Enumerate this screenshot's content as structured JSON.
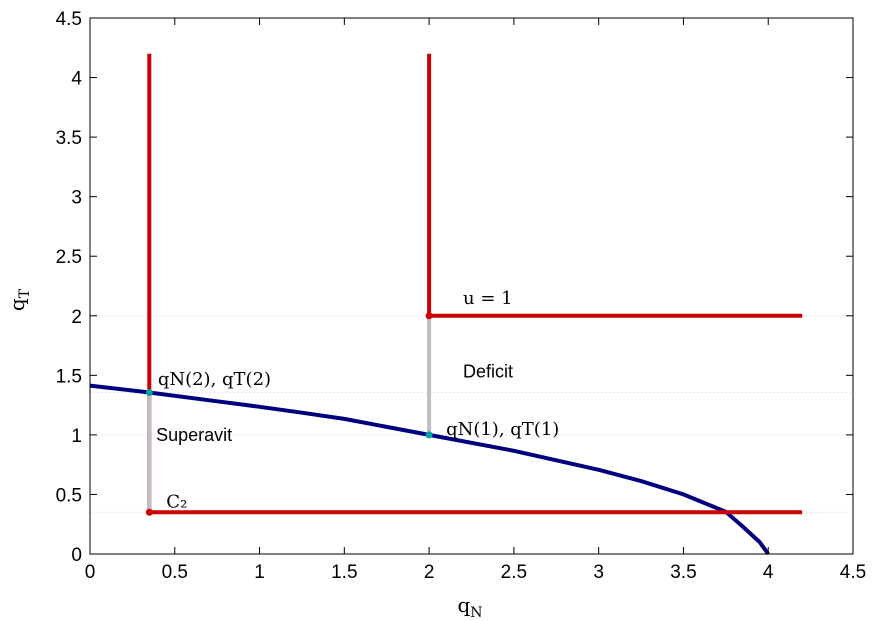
{
  "chart_data": {
    "type": "line",
    "xlabel_base": "q",
    "xlabel_sub": "N",
    "ylabel_base": "q",
    "ylabel_sub": "T",
    "xlim": [
      0,
      4.5
    ],
    "ylim": [
      0,
      4.5
    ],
    "xticks": [
      "0",
      "0.5",
      "1",
      "1.5",
      "2",
      "2.5",
      "3",
      "3.5",
      "4",
      "4.5"
    ],
    "yticks": [
      "0",
      "0.5",
      "1",
      "1.5",
      "2",
      "2.5",
      "3",
      "3.5",
      "4",
      "4.5"
    ],
    "grid": false,
    "series": [
      {
        "color": "#00007f",
        "points": [
          [
            0,
            1.414
          ],
          [
            0.35,
            1.356
          ],
          [
            0.75,
            1.282
          ],
          [
            1.0,
            1.236
          ],
          [
            1.25,
            1.186
          ],
          [
            1.5,
            1.134
          ],
          [
            2.0,
            1.0
          ],
          [
            2.5,
            0.866
          ],
          [
            3.0,
            0.707
          ],
          [
            3.25,
            0.612
          ],
          [
            3.5,
            0.5
          ],
          [
            3.75,
            0.354
          ],
          [
            3.85,
            0.23
          ],
          [
            3.95,
            0.1
          ],
          [
            4.0,
            0.0
          ]
        ]
      },
      {
        "color": "#cc0000",
        "points": [
          [
            0.35,
            4.2
          ],
          [
            0.35,
            0.35
          ],
          [
            4.2,
            0.35
          ]
        ]
      },
      {
        "color": "#cc0000",
        "points": [
          [
            2.0,
            4.2
          ],
          [
            2.0,
            2.0
          ],
          [
            4.2,
            2.0
          ]
        ]
      },
      {
        "color": "#bfbfbf",
        "points": [
          [
            0.35,
            0.35
          ],
          [
            0.35,
            1.356
          ]
        ]
      },
      {
        "color": "#bfbfbf",
        "points": [
          [
            2.0,
            1.0
          ],
          [
            2.0,
            2.0
          ]
        ]
      }
    ],
    "reference_lines_y": [
      0.35,
      1.0,
      1.356,
      2.0
    ],
    "markers": [
      {
        "x": 0.35,
        "y": 0.35,
        "color": "#cc0000"
      },
      {
        "x": 2.0,
        "y": 2.0,
        "color": "#cc0000"
      },
      {
        "x": 0.35,
        "y": 1.356,
        "color": "#00a0a0"
      },
      {
        "x": 2.0,
        "y": 1.0,
        "color": "#00a0a0"
      }
    ],
    "annotations": [
      {
        "id": "u1",
        "text": "u = 1",
        "x": 2.2,
        "y": 2.1,
        "style": "serif"
      },
      {
        "id": "deficit",
        "text": "Deficit",
        "x": 2.2,
        "y": 1.48,
        "style": "sans"
      },
      {
        "id": "superavit",
        "text": "Superavit",
        "x": 0.39,
        "y": 0.95,
        "style": "sans"
      },
      {
        "id": "c2",
        "text": "C₂",
        "x": 0.45,
        "y": 0.39,
        "style": "serif"
      },
      {
        "id": "pt2",
        "text": "qN(2), qT(2)",
        "x": 0.4,
        "y": 1.42,
        "style": "serif"
      },
      {
        "id": "pt1",
        "text": "qN(1), qT(1)",
        "x": 2.1,
        "y": 1.0,
        "style": "serif"
      }
    ]
  }
}
